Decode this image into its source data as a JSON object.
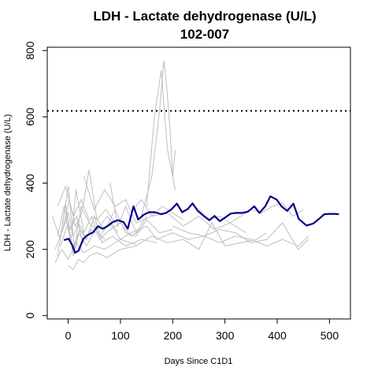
{
  "chart_data": {
    "type": "line",
    "title": "LDH - Lactate dehydrogenase (U/L)",
    "subtitle": "102-007",
    "xlabel": "Days Since C1D1",
    "ylabel": "LDH - Lactate dehydrogenase (U/L)",
    "xlim": [
      -40,
      540
    ],
    "ylim": [
      -10,
      810
    ],
    "x_ticks": [
      0,
      100,
      200,
      300,
      400,
      500
    ],
    "y_ticks": [
      0,
      200,
      400,
      600,
      800
    ],
    "reference_line": {
      "y": 618,
      "style": "dotted",
      "color": "#000000"
    },
    "colors": {
      "highlight": "#00008B",
      "background": "#BEBEBE",
      "reference": "#000000"
    },
    "highlight_series": {
      "name": "102-007",
      "x": [
        -8,
        1,
        8,
        13,
        20,
        29,
        36,
        48,
        57,
        66,
        77,
        85,
        95,
        106,
        114,
        125,
        134,
        145,
        155,
        166,
        178,
        187,
        197,
        208,
        218,
        229,
        238,
        248,
        260,
        270,
        280,
        290,
        300,
        311,
        321,
        333,
        344,
        356,
        366,
        377,
        387,
        399,
        408,
        419,
        431,
        441,
        456,
        469,
        480,
        490,
        500,
        509,
        518
      ],
      "y": [
        228,
        232,
        212,
        190,
        196,
        232,
        242,
        252,
        270,
        262,
        272,
        282,
        288,
        282,
        262,
        330,
        290,
        305,
        312,
        312,
        306,
        310,
        320,
        338,
        312,
        322,
        339,
        316,
        300,
        288,
        301,
        285,
        296,
        308,
        310,
        310,
        314,
        330,
        310,
        330,
        360,
        350,
        330,
        316,
        338,
        292,
        272,
        278,
        292,
        306,
        307,
        307,
        306
      ]
    },
    "background_series": [
      {
        "x": [
          -25,
          -10,
          0,
          10,
          20,
          35,
          50,
          70,
          90,
          110,
          130,
          150,
          175,
          200
        ],
        "y": [
          200,
          260,
          310,
          240,
          280,
          230,
          300,
          260,
          320,
          250,
          240,
          290,
          250,
          260
        ]
      },
      {
        "x": [
          -20,
          -5,
          5,
          15,
          30,
          45,
          60,
          80,
          100,
          120,
          140
        ],
        "y": [
          180,
          340,
          220,
          380,
          250,
          300,
          230,
          260,
          280,
          240,
          260
        ]
      },
      {
        "x": [
          -30,
          -15,
          0,
          12,
          25,
          40,
          55,
          75,
          95
        ],
        "y": [
          300,
          230,
          390,
          200,
          330,
          280,
          260,
          300,
          250
        ]
      },
      {
        "x": [
          -20,
          -8,
          4,
          16,
          28,
          44,
          60
        ],
        "y": [
          240,
          330,
          260,
          300,
          220,
          260,
          240
        ]
      },
      {
        "x": [
          -15,
          0,
          10,
          22,
          35,
          50,
          65,
          85,
          110,
          140,
          170
        ],
        "y": [
          210,
          280,
          180,
          260,
          230,
          300,
          220,
          240,
          210,
          230,
          220
        ]
      },
      {
        "x": [
          -25,
          -12,
          0,
          15,
          30,
          50,
          70,
          100,
          130
        ],
        "y": [
          160,
          200,
          170,
          220,
          190,
          210,
          200,
          230,
          215
        ]
      },
      {
        "x": [
          -10,
          2,
          14,
          26,
          40,
          55,
          72,
          90
        ],
        "y": [
          260,
          350,
          270,
          310,
          440,
          290,
          320,
          280
        ]
      },
      {
        "x": [
          -5,
          8,
          20,
          35,
          52,
          70
        ],
        "y": [
          300,
          200,
          250,
          210,
          260,
          230
        ]
      },
      {
        "x": [
          0,
          10,
          20,
          30,
          40,
          55,
          75,
          100
        ],
        "y": [
          150,
          140,
          170,
          160,
          180,
          190,
          175,
          200
        ]
      },
      {
        "x": [
          60,
          80,
          100,
          120,
          150,
          170,
          200,
          230,
          260,
          290,
          320,
          350,
          380,
          410,
          440,
          460
        ],
        "y": [
          240,
          280,
          230,
          250,
          270,
          230,
          250,
          230,
          240,
          220,
          240,
          230,
          210,
          230,
          210,
          240
        ]
      },
      {
        "x": [
          140,
          160,
          175,
          183,
          188,
          195,
          200,
          205
        ],
        "y": [
          300,
          420,
          620,
          770,
          700,
          560,
          420,
          500
        ]
      },
      {
        "x": [
          150,
          165,
          178,
          190,
          205
        ],
        "y": [
          330,
          600,
          740,
          500,
          380
        ]
      },
      {
        "x": [
          100,
          130,
          160,
          190,
          220,
          250,
          275,
          300,
          330,
          360,
          380
        ],
        "y": [
          200,
          210,
          240,
          220,
          230,
          200,
          280,
          210,
          220,
          230,
          250
        ]
      },
      {
        "x": [
          200,
          230,
          260,
          290,
          320,
          350,
          380,
          410,
          440,
          460
        ],
        "y": [
          270,
          250,
          240,
          260,
          250,
          220,
          230,
          280,
          200,
          230
        ]
      },
      {
        "x": [
          80,
          95,
          110,
          130,
          150
        ],
        "y": [
          400,
          270,
          330,
          250,
          300
        ]
      },
      {
        "x": [
          30,
          50,
          70,
          90,
          110,
          130,
          160,
          190,
          220,
          250,
          280,
          310,
          340
        ],
        "y": [
          420,
          320,
          380,
          330,
          350,
          280,
          300,
          310,
          270,
          300,
          260,
          280,
          250
        ]
      },
      {
        "x": [
          250,
          270,
          290,
          310,
          330,
          350,
          370,
          390,
          410,
          430,
          450
        ],
        "y": [
          320,
          290,
          300,
          280,
          300,
          320,
          310,
          330,
          340,
          300,
          320
        ]
      },
      {
        "x": [
          -20,
          -5,
          10,
          25,
          40
        ],
        "y": [
          330,
          390,
          300,
          350,
          290
        ]
      },
      {
        "x": [
          120,
          140,
          160,
          180,
          200,
          220
        ],
        "y": [
          310,
          350,
          300,
          330,
          310,
          290
        ]
      }
    ]
  }
}
